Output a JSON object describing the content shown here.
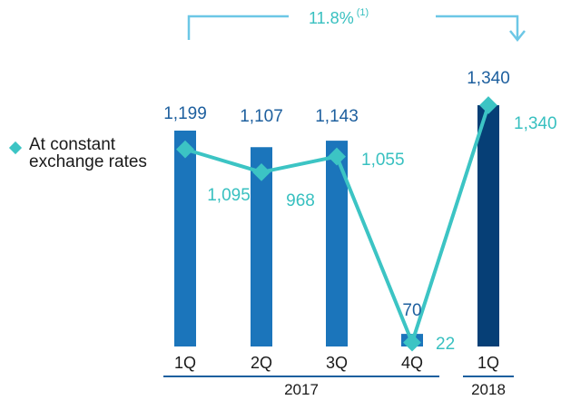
{
  "colors": {
    "bar_2017": "#1b75bb",
    "bar_2018": "#063f76",
    "line": "#3cc4c4",
    "bar_label": "#1d5f9e",
    "line_label": "#38c0c0",
    "axis": "#1d5f9e",
    "text": "#1a1a1a"
  },
  "legend": {
    "label": "At constant exchange rates"
  },
  "growth": {
    "value": "11.8%",
    "footnote": "(1)"
  },
  "chart_data": {
    "type": "bar",
    "categories": [
      "1Q",
      "2Q",
      "3Q",
      "4Q",
      "1Q"
    ],
    "groups": [
      {
        "label": "2017",
        "categories": [
          "1Q",
          "2Q",
          "3Q",
          "4Q"
        ]
      },
      {
        "label": "2018",
        "categories": [
          "1Q"
        ]
      }
    ],
    "series": [
      {
        "type": "bar",
        "values": [
          1199,
          1107,
          1143,
          70,
          1340
        ],
        "labels": [
          "1,199",
          "1,107",
          "1,143",
          "70",
          "1,340"
        ]
      },
      {
        "name": "At constant exchange rates",
        "type": "line",
        "values": [
          1095,
          968,
          1055,
          22,
          1340
        ],
        "labels": [
          "1,095",
          "968",
          "1,055",
          "22",
          "1,340"
        ]
      }
    ],
    "ylim": [
      0,
      1340
    ],
    "grid": false,
    "legend_position": "left"
  }
}
